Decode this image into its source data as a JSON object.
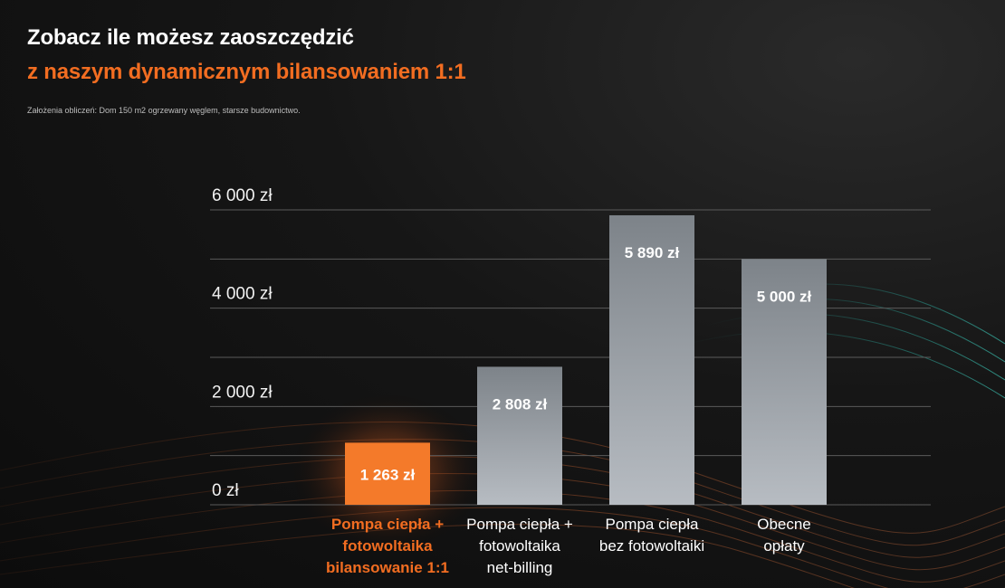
{
  "header": {
    "title_line1": "Zobacz ile możesz zaoszczędzić",
    "title_line2": "z naszym dynamicznym bilansowaniem 1:1",
    "assumptions": "Założenia obliczeń: Dom 150 m2 ogrzewany węglem, starsze budownictwo."
  },
  "colors": {
    "accent": "#f26d21",
    "highlight_bar": "#f47a2a",
    "grey_bar_top": "#7d8389",
    "grey_bar_bottom": "#b7bcc2",
    "grid": "#5a5a5a",
    "text": "#ffffff"
  },
  "chart_data": {
    "type": "bar",
    "title": "",
    "xlabel": "",
    "ylabel": "",
    "ylim": [
      0,
      6000
    ],
    "yticks": [
      {
        "value": 0,
        "label": "0 zł"
      },
      {
        "value": 2000,
        "label": "2 000 zł"
      },
      {
        "value": 4000,
        "label": "4 000 zł"
      },
      {
        "value": 6000,
        "label": "6 000 zł"
      }
    ],
    "grid": true,
    "legend": "none",
    "bars": [
      {
        "lines": [
          "Pompa ciepła +",
          "fotowoltaika",
          "bilansowanie 1:1"
        ],
        "value": 1263,
        "value_label": "1 263 zł",
        "highlight": true
      },
      {
        "lines": [
          "Pompa ciepła +",
          "fotowoltaika",
          "net-billing"
        ],
        "value": 2808,
        "value_label": "2 808 zł",
        "highlight": false
      },
      {
        "lines": [
          "Pompa ciepła",
          "bez fotowoltaiki"
        ],
        "value": 5890,
        "value_label": "5 890 zł",
        "highlight": false
      },
      {
        "lines": [
          "Obecne",
          "opłaty"
        ],
        "value": 5000,
        "value_label": "5 000 zł",
        "highlight": false
      }
    ]
  }
}
